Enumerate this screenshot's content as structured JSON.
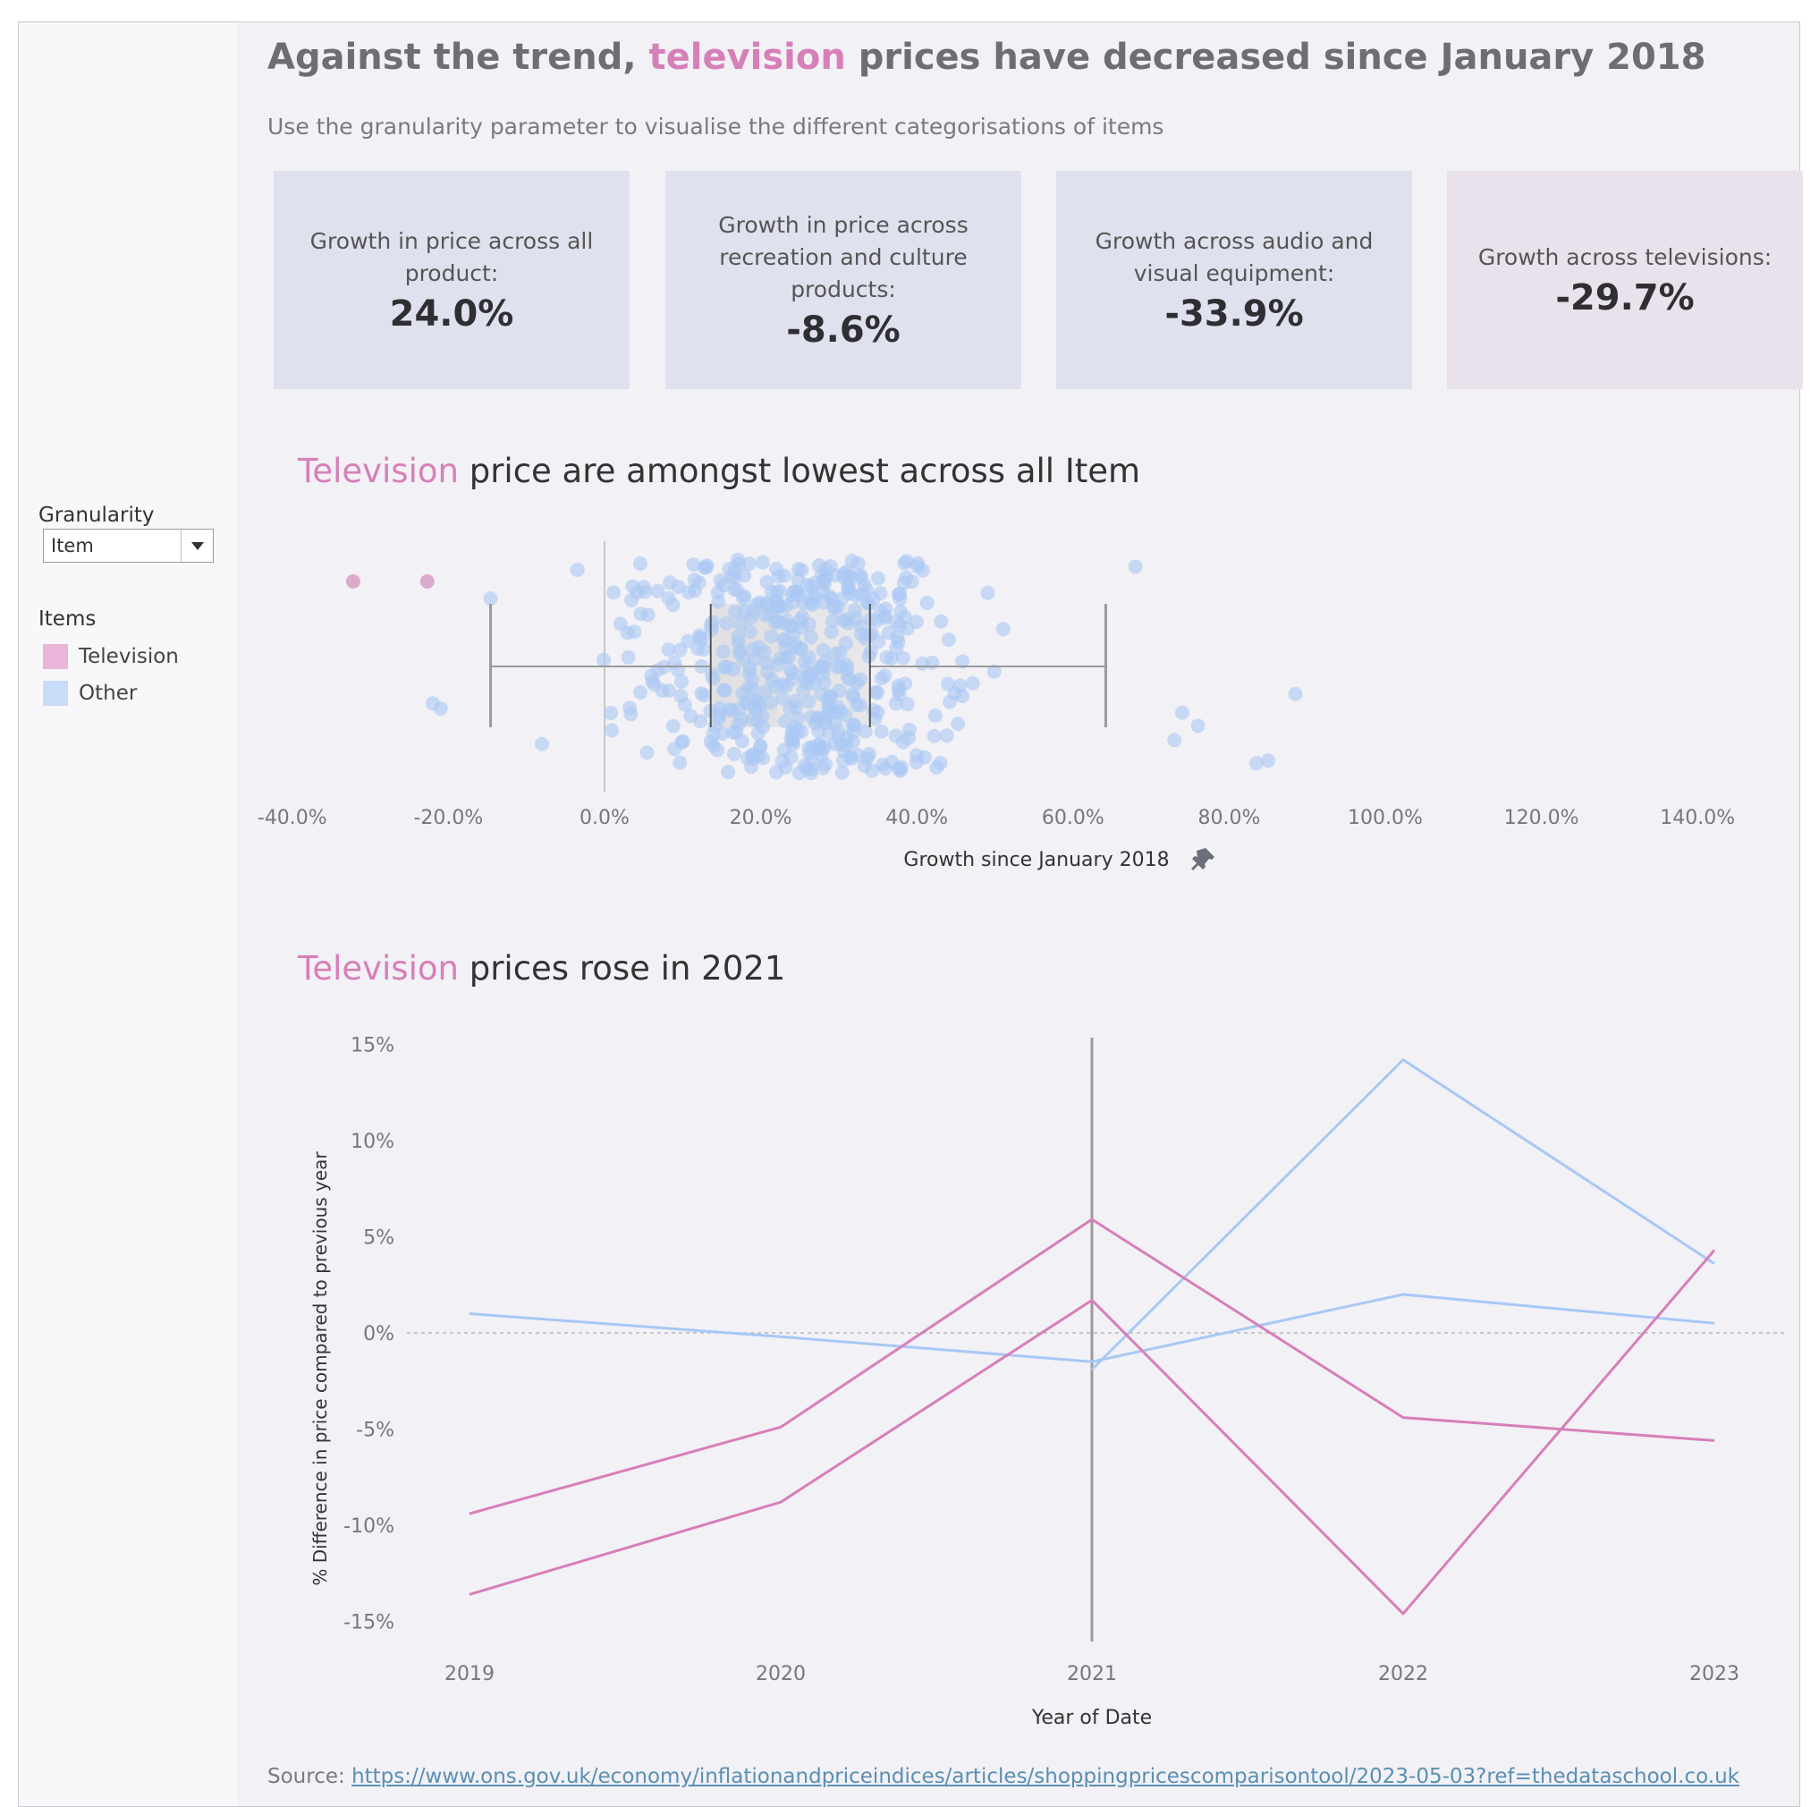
{
  "title": {
    "prefix": "Against the trend, ",
    "highlight": "television",
    "suffix": " prices have decreased since January 2018"
  },
  "subtitle": "Use the granularity parameter to visualise the different categorisations of items",
  "kpis": [
    {
      "label": "Growth in price across all product:",
      "value": "24.0%"
    },
    {
      "label": "Growth in price across recreation and culture products:",
      "value": "-8.6%"
    },
    {
      "label": "Growth across audio and visual equipment:",
      "value": "-33.9%"
    },
    {
      "label": "Growth across televisions:",
      "value": "-29.7%"
    }
  ],
  "sidebar": {
    "granularity_label": "Granularity",
    "granularity_value": "Item",
    "legend_title": "Items",
    "legend": [
      {
        "label": "Television",
        "color": "#eab5d8"
      },
      {
        "label": "Other",
        "color": "#c8dcf8"
      }
    ]
  },
  "colors": {
    "television": "#d77fb8",
    "other": "#a8c8f5",
    "tv_dot": "#d9a3c8",
    "other_dot": "#aac8f3"
  },
  "chart1_title": {
    "highlight": "Television",
    "rest": " price are amongst lowest across all Item"
  },
  "chart2_title": {
    "highlight": "Television",
    "rest": " prices rose in 2021"
  },
  "source": {
    "label": "Source: ",
    "url": "https://www.ons.gov.uk/economy/inflationandpriceindices/articles/shoppingpricescomparisontool/2023-05-03?ref=thedataschool.co.uk"
  },
  "chart_data": [
    {
      "type": "scatter",
      "subtype": "jittered strip with box plot",
      "xlabel": "Growth since January 2018",
      "xlim": [
        -0.42,
        1.52
      ],
      "xticks": [
        -0.4,
        -0.2,
        0.0,
        0.2,
        0.4,
        0.6,
        0.8,
        1.0,
        1.2,
        1.4
      ],
      "xtick_labels": [
        "-40.0%",
        "-20.0%",
        "0.0%",
        "20.0%",
        "40.0%",
        "60.0%",
        "80.0%",
        "100.0%",
        "120.0%",
        "140.0%"
      ],
      "box": {
        "whisker_low": -0.146,
        "q1": 0.136,
        "median": 0.222,
        "q3": 0.34,
        "whisker_high": 0.642
      },
      "television_points": [
        -0.322,
        -0.227
      ],
      "other_points_seed": 7,
      "other_points_count": 470,
      "other_points_extra": [
        -0.21,
        -0.22,
        -0.146,
        -0.08,
        0.68,
        0.73,
        0.76,
        0.85,
        0.885,
        0.835,
        0.74
      ]
    },
    {
      "type": "line",
      "xlabel": "Year of Date",
      "ylabel": "% Difference in price compared to previous year",
      "x": [
        2019,
        2020,
        2021,
        2022,
        2023
      ],
      "ylim": [
        -16,
        16
      ],
      "yticks": [
        15,
        10,
        5,
        0,
        -5,
        -10,
        -15
      ],
      "ytick_labels": [
        "15%",
        "10%",
        "5%",
        "0%",
        "-5%",
        "-10%",
        "-15%"
      ],
      "reference_line_x": 2021,
      "series": [
        {
          "group": "Other",
          "values": [
            1.0,
            -0.2,
            -1.5,
            2.0,
            0.5
          ]
        },
        {
          "group": "Other",
          "values": [
            null,
            null,
            -1.9,
            14.2,
            3.6
          ]
        },
        {
          "group": "Television",
          "values": [
            -9.4,
            -4.9,
            5.9,
            -4.4,
            -5.6
          ]
        },
        {
          "group": "Television",
          "values": [
            -13.6,
            -8.8,
            1.7,
            -14.6,
            4.3
          ]
        }
      ]
    }
  ]
}
